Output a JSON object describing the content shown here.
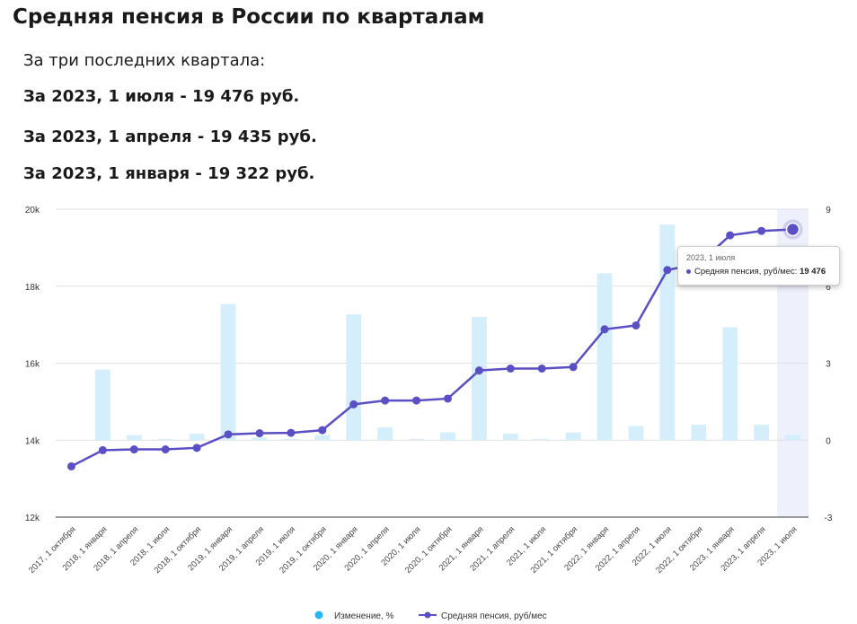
{
  "header": {
    "title": "Средняя пенсия в России по кварталам",
    "subtitle": "За три последних квартала:",
    "lines": [
      "За 2023, 1 июля - 19 476 руб.",
      "За 2023, 1 апреля - 19 435 руб.",
      "За 2023, 1 января - 19 322 руб."
    ]
  },
  "colors": {
    "bar": "#d4eefc",
    "line": "#5a4fc4",
    "legend_bar": "#29b6f6",
    "highlight": "#eef0fc"
  },
  "tooltip": {
    "date": "2023, 1 июля",
    "series": "Средняя пенсия, руб/мес:",
    "value": "19 476"
  },
  "chart_data": {
    "type": "bar+line",
    "categories": [
      "2017, 1 октября",
      "2018, 1 января",
      "2018, 1 апреля",
      "2018, 1 июля",
      "2018, 1 октября",
      "2019, 1 января",
      "2019, 1 апреля",
      "2019, 1 июля",
      "2019, 1 октября",
      "2020, 1 января",
      "2020, 1 апреля",
      "2020, 1 июля",
      "2020, 1 октября",
      "2021, 1 января",
      "2021, 1 апреля",
      "2021, 1 июля",
      "2021, 1 октября",
      "2022, 1 января",
      "2022, 1 апреля",
      "2022, 1 июля",
      "2022, 1 октября",
      "2023, 1 января",
      "2023, 1 апреля",
      "2023, 1 июля"
    ],
    "y_left": {
      "ticks": [
        "12k",
        "14k",
        "16k",
        "18k",
        "20k"
      ],
      "ylim": [
        12000,
        20000
      ]
    },
    "y_right": {
      "ticks": [
        "-3",
        "0",
        "3",
        "6",
        "9"
      ],
      "ylim": [
        -3,
        9
      ]
    },
    "series": [
      {
        "name": "Изменение, %",
        "type": "bar",
        "axis": "right",
        "values": [
          0.0,
          2.75,
          0.2,
          0.05,
          0.25,
          5.3,
          0.1,
          0.05,
          0.2,
          4.9,
          0.5,
          0.05,
          0.3,
          4.8,
          0.25,
          0.05,
          0.3,
          6.5,
          0.55,
          8.4,
          0.6,
          4.4,
          0.6,
          0.2
        ]
      },
      {
        "name": "Средняя пенсия, руб/мес",
        "type": "line",
        "axis": "left",
        "values": [
          13320,
          13740,
          13760,
          13760,
          13800,
          14150,
          14180,
          14190,
          14260,
          14930,
          15030,
          15030,
          15080,
          15810,
          15860,
          15860,
          15900,
          16880,
          16980,
          18420,
          18580,
          19322,
          19435,
          19476
        ]
      }
    ],
    "highlighted_index": 23,
    "legend": [
      "Изменение, %",
      "Средняя пенсия, руб/мес"
    ],
    "legend_position": "bottom",
    "grid": true
  }
}
